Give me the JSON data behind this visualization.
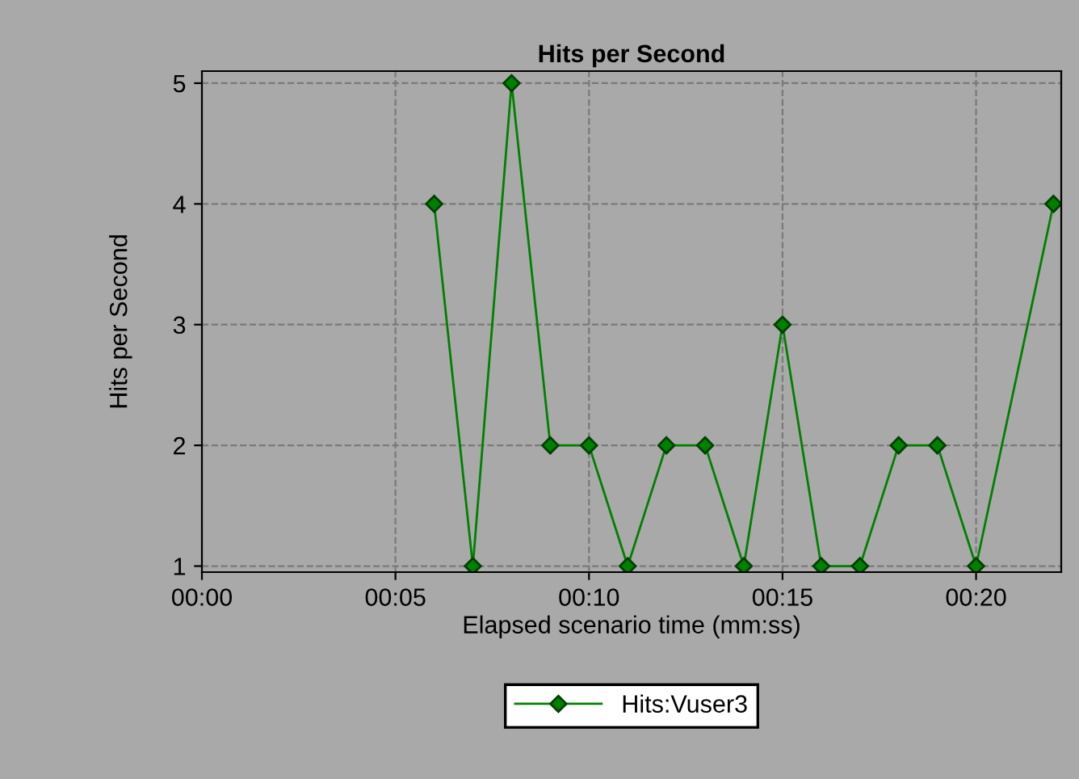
{
  "chart_data": {
    "type": "line",
    "title": "Hits per Second",
    "xlabel": "Elapsed scenario time (mm:ss)",
    "ylabel": "Hits per Second",
    "series": [
      {
        "name": "Hits:Vuser3",
        "color": "#008000",
        "x": [
          6,
          7,
          8,
          9,
          10,
          11,
          12,
          13,
          14,
          15,
          16,
          17,
          18,
          19,
          20,
          22
        ],
        "values": [
          4,
          1,
          5,
          2,
          2,
          1,
          2,
          2,
          1,
          3,
          1,
          1,
          2,
          2,
          1,
          4
        ]
      }
    ],
    "xlim": [
      0,
      22.2
    ],
    "xticks": [
      {
        "value": 0,
        "label": "00:00"
      },
      {
        "value": 5,
        "label": "00:05"
      },
      {
        "value": 10,
        "label": "00:10"
      },
      {
        "value": 15,
        "label": "00:15"
      },
      {
        "value": 20,
        "label": "00:20"
      }
    ],
    "ylim": [
      0.95,
      5.1
    ],
    "yticks": [
      1,
      2,
      3,
      4,
      5
    ],
    "grid": true,
    "legend": "bottom",
    "marker": "diamond",
    "line_style": "solid"
  }
}
